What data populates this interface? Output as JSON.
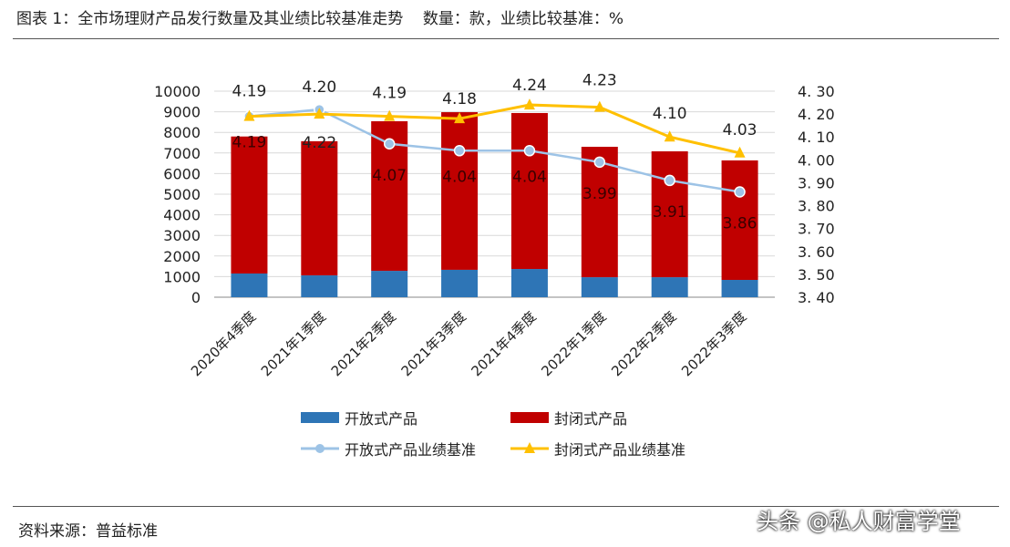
{
  "title": "图表 1：全市场理财产品发行数量及其业绩比较基准走势    数量：款，业绩比较基准：%",
  "source": "资料来源：普益标准",
  "watermark": "头条 @私人财富学堂",
  "chart_data": {
    "type": "bar+line",
    "categories": [
      "2020年4季度",
      "2021年1季度",
      "2021年2季度",
      "2021年3季度",
      "2021年4季度",
      "2022年1季度",
      "2022年2季度",
      "2022年3季度"
    ],
    "left_axis": {
      "ylim": [
        0,
        10000
      ],
      "ticks": [
        0,
        1000,
        2000,
        3000,
        4000,
        5000,
        6000,
        7000,
        8000,
        9000,
        10000
      ]
    },
    "right_axis": {
      "ylim": [
        3.4,
        4.3
      ],
      "ticks": [
        "3.40",
        "3.50",
        "3.60",
        "3.70",
        "3.80",
        "3.90",
        "4.00",
        "4.10",
        "4.20",
        "4.30"
      ]
    },
    "grid": true,
    "legend_placement": "bottom",
    "series": [
      {
        "name": "开放式产品",
        "type": "stacked-bar",
        "axis": "left",
        "color": "#2e75b6",
        "values": [
          1150,
          1060,
          1280,
          1330,
          1370,
          970,
          970,
          840
        ]
      },
      {
        "name": "封闭式产品",
        "type": "stacked-bar",
        "axis": "left",
        "color": "#c00000",
        "values": [
          6650,
          6510,
          7260,
          7650,
          7570,
          6330,
          6110,
          5800
        ]
      },
      {
        "name": "开放式产品业绩基准",
        "type": "line",
        "axis": "right",
        "color": "#9dc3e6",
        "values": [
          4.19,
          4.22,
          4.07,
          4.04,
          4.04,
          3.99,
          3.91,
          3.86
        ],
        "labels": [
          "4.19",
          "4.22",
          "4.07",
          "4.04",
          "4.04",
          "3.99",
          "3.91",
          "3.86"
        ]
      },
      {
        "name": "封闭式产品业绩基准",
        "type": "line",
        "axis": "right",
        "color": "#ffc000",
        "values": [
          4.19,
          4.2,
          4.19,
          4.18,
          4.24,
          4.23,
          4.1,
          4.03
        ],
        "labels": [
          "4.19",
          "4.20",
          "4.19",
          "4.18",
          "4.24",
          "4.23",
          "4.10",
          "4.03"
        ]
      }
    ]
  }
}
